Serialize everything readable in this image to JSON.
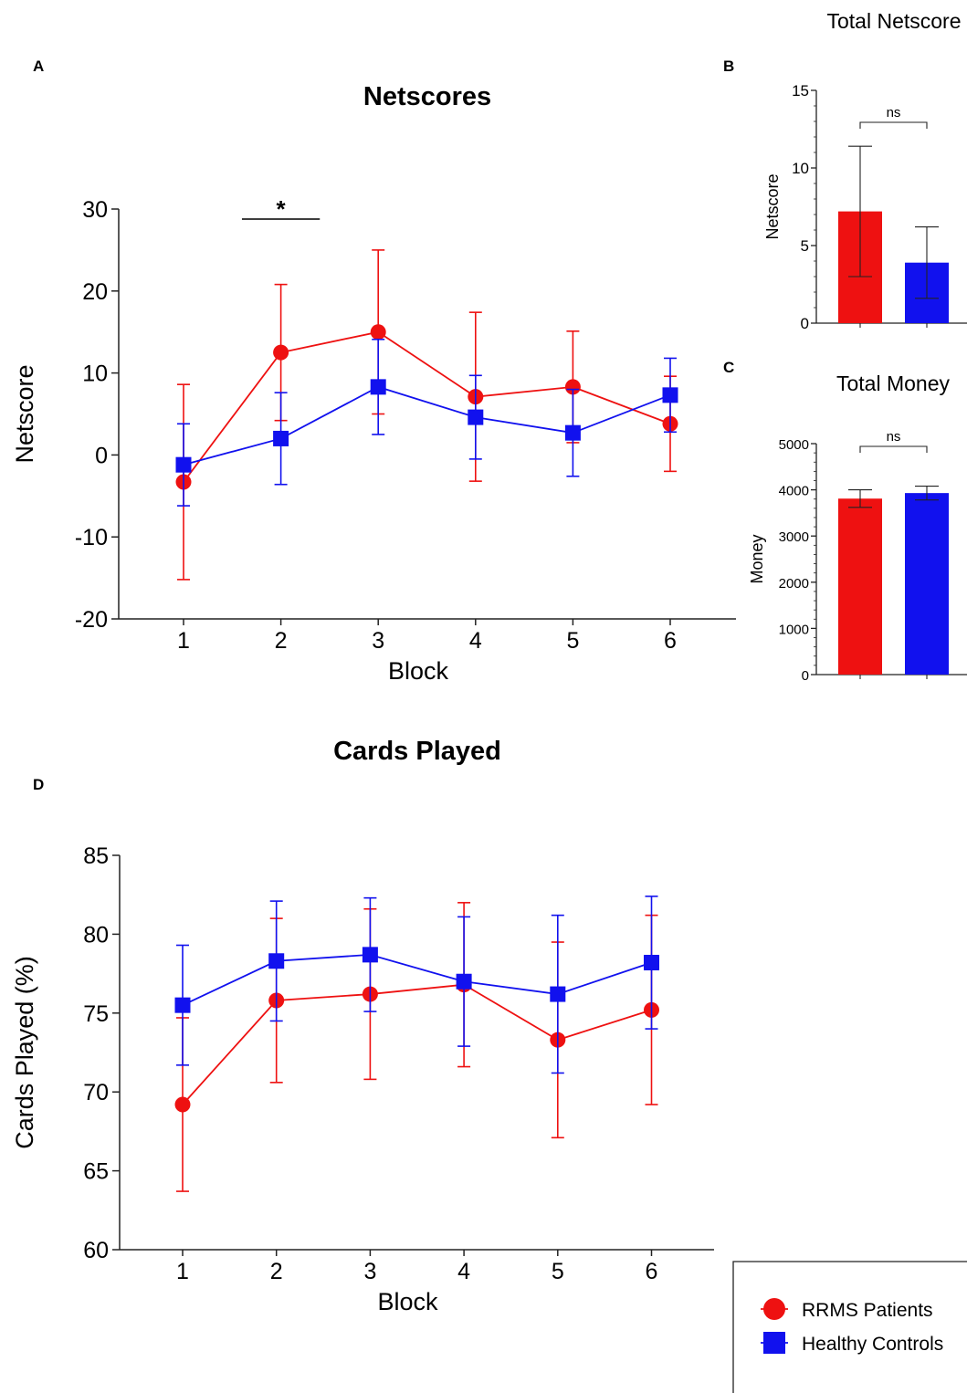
{
  "panel_labels": {
    "a": "A",
    "b": "B",
    "c": "C",
    "d": "D"
  },
  "colors": {
    "rrms": "#ee1111",
    "hc": "#1111ee",
    "axis": "#222222",
    "text": "#111111"
  },
  "legend": {
    "rrms": {
      "label": "RRMS Patients",
      "marker": "circle"
    },
    "hc": {
      "label": "Healthy Controls",
      "marker": "square"
    }
  },
  "chart_data": [
    {
      "id": "A",
      "type": "line",
      "title": "Netscores",
      "xlabel": "Block",
      "ylabel": "Netscore",
      "x": [
        1,
        2,
        3,
        4,
        5,
        6
      ],
      "ylim": [
        -20,
        30
      ],
      "yticks": [
        -20,
        -10,
        0,
        10,
        20,
        30
      ],
      "series": [
        {
          "key": "rrms",
          "name": "RRMS Patients",
          "values": [
            -3.3,
            12.5,
            15.0,
            7.1,
            8.3,
            3.8
          ],
          "err": [
            11.9,
            8.3,
            10.0,
            10.3,
            6.8,
            5.8
          ]
        },
        {
          "key": "hc",
          "name": "Healthy Controls",
          "values": [
            -1.2,
            2.0,
            8.3,
            4.6,
            2.7,
            7.3
          ],
          "err": [
            5.0,
            5.6,
            5.8,
            5.1,
            5.3,
            4.5
          ]
        }
      ],
      "annotations": [
        {
          "text": "*",
          "x_from": 1.6,
          "x_to": 2.4
        }
      ]
    },
    {
      "id": "B",
      "type": "bar",
      "title": "Total Netscore",
      "ylabel": "Netscore",
      "categories": [
        "RRMS Patients",
        "Healthy Controls"
      ],
      "values": [
        7.2,
        3.9
      ],
      "err": [
        4.2,
        2.3
      ],
      "ylim": [
        0,
        15
      ],
      "yticks": [
        0,
        5,
        10,
        15
      ],
      "annotation": "ns"
    },
    {
      "id": "C",
      "type": "bar",
      "title": "Total Money",
      "ylabel": "Money",
      "categories": [
        "RRMS Patients",
        "Healthy Controls"
      ],
      "values": [
        3810,
        3930
      ],
      "err": [
        190,
        150
      ],
      "ylim": [
        0,
        5000
      ],
      "yticks": [
        0,
        1000,
        2000,
        3000,
        4000,
        5000
      ],
      "annotation": "ns"
    },
    {
      "id": "D",
      "type": "line",
      "title": "Cards Played",
      "xlabel": "Block",
      "ylabel": "Cards Played (%)",
      "x": [
        1,
        2,
        3,
        4,
        5,
        6
      ],
      "ylim": [
        60,
        85
      ],
      "yticks": [
        60,
        65,
        70,
        75,
        80,
        85
      ],
      "series": [
        {
          "key": "rrms",
          "name": "RRMS Patients",
          "values": [
            69.2,
            75.8,
            76.2,
            76.8,
            73.3,
            75.2
          ],
          "err": [
            5.5,
            5.2,
            5.4,
            5.2,
            6.2,
            6.0
          ]
        },
        {
          "key": "hc",
          "name": "Healthy Controls",
          "values": [
            75.5,
            78.3,
            78.7,
            77.0,
            76.2,
            78.2
          ],
          "err": [
            3.8,
            3.8,
            3.6,
            4.1,
            5.0,
            4.2
          ]
        }
      ]
    }
  ]
}
